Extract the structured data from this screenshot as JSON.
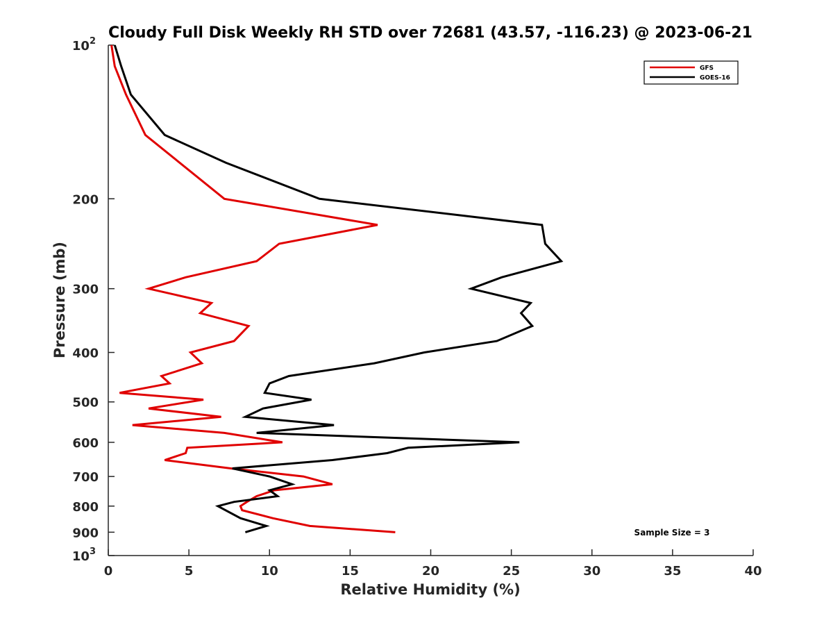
{
  "chart_data": {
    "type": "line",
    "title": "Cloudy Full Disk Weekly RH STD over 72681 (43.57, -116.23) @ 2023-06-21",
    "xlabel": "Relative Humidity (%)",
    "ylabel": "Pressure (mb)",
    "xlim": [
      0,
      40
    ],
    "ylim": [
      100,
      1000
    ],
    "yscale": "log",
    "y_reversed": true,
    "x_ticks": [
      "0",
      "5",
      "10",
      "15",
      "20",
      "25",
      "30",
      "35",
      "40"
    ],
    "y_ticks": [
      {
        "value": 100,
        "label": "10",
        "sup": "2"
      },
      {
        "value": 200,
        "label": "200"
      },
      {
        "value": 300,
        "label": "300"
      },
      {
        "value": 400,
        "label": "400"
      },
      {
        "value": 500,
        "label": "500"
      },
      {
        "value": 600,
        "label": "600"
      },
      {
        "value": 700,
        "label": "700"
      },
      {
        "value": 800,
        "label": "800"
      },
      {
        "value": 900,
        "label": "900"
      },
      {
        "value": 1000,
        "label": "10",
        "sup": "3"
      }
    ],
    "grid": false,
    "legend_position": "top-right",
    "series": [
      {
        "name": "GFS",
        "color": "#e00000",
        "x": [
          0.2,
          0.4,
          1.1,
          2.3,
          7.2,
          16.7,
          10.6,
          9.2,
          4.8,
          2.5,
          6.4,
          5.7,
          8.7,
          7.8,
          5.1,
          5.8,
          3.3,
          3.8,
          0.7,
          5.9,
          2.5,
          7.0,
          1.5,
          7.2,
          10.8,
          4.9,
          4.8,
          3.5,
          7.6,
          12.1,
          13.9,
          10.3,
          9.2,
          8.6,
          8.2,
          8.3,
          10.2,
          12.5,
          17.8
        ],
        "y": [
          100,
          110,
          125,
          150,
          200,
          225,
          245,
          265,
          285,
          300,
          320,
          335,
          355,
          380,
          400,
          420,
          445,
          460,
          480,
          495,
          515,
          535,
          555,
          575,
          600,
          615,
          630,
          650,
          675,
          700,
          725,
          745,
          765,
          785,
          800,
          815,
          845,
          875,
          900
        ]
      },
      {
        "name": "GOES-16",
        "color": "#000000",
        "x": [
          0.4,
          0.8,
          1.4,
          3.5,
          7.3,
          13.1,
          26.9,
          27.1,
          28.1,
          24.4,
          22.5,
          26.2,
          25.6,
          26.3,
          24.1,
          19.6,
          16.5,
          11.2,
          10.0,
          9.7,
          12.6,
          9.6,
          8.5,
          14.0,
          9.2,
          25.5,
          18.6,
          17.3,
          13.9,
          7.7,
          10.0,
          11.4,
          10.0,
          10.5,
          7.8,
          6.8,
          8.2,
          9.8,
          8.5
        ],
        "y": [
          100,
          110,
          125,
          150,
          170,
          200,
          225,
          245,
          265,
          285,
          300,
          320,
          335,
          355,
          380,
          400,
          420,
          445,
          460,
          480,
          495,
          515,
          535,
          555,
          575,
          600,
          615,
          630,
          650,
          675,
          700,
          725,
          745,
          765,
          785,
          800,
          845,
          875,
          900
        ]
      }
    ],
    "annotation": "Sample Size = 3"
  }
}
